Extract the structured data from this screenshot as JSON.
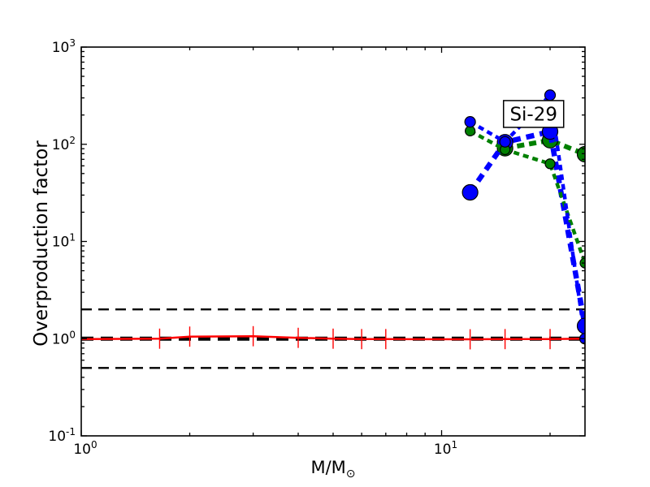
{
  "figure": {
    "background": "#ffffff"
  },
  "chart_data": {
    "type": "line",
    "title": "",
    "xlabel": {
      "main": "M/M",
      "sub": "⊙"
    },
    "ylabel": "Overproduction factor",
    "xscale": "log",
    "yscale": "log",
    "xlim": [
      1,
      25
    ],
    "ylim": [
      0.1,
      1000
    ],
    "grid": false,
    "legend": "none",
    "x_major_ticks": [
      {
        "value": 1,
        "base": "10",
        "exp": "0"
      },
      {
        "value": 10,
        "base": "10",
        "exp": "1"
      }
    ],
    "x_minor_ticks": [
      2,
      3,
      4,
      5,
      6,
      7,
      8,
      9,
      20
    ],
    "y_major_ticks": [
      {
        "value": 1000,
        "base": "10",
        "exp": "3"
      },
      {
        "value": 100,
        "base": "10",
        "exp": "2"
      },
      {
        "value": 10,
        "base": "10",
        "exp": "1"
      },
      {
        "value": 1,
        "base": "10",
        "exp": "0"
      },
      {
        "value": 0.1,
        "base": "10",
        "exp": "-1"
      }
    ],
    "y_minor_decades": [
      0.1,
      1,
      10,
      100
    ],
    "annotation": {
      "label": "Si-29",
      "x": 18,
      "y": 205
    },
    "reference_lines": [
      {
        "y": 2,
        "color": "#000000",
        "style": "dashed",
        "width": 2.3,
        "dash": [
          13,
          8
        ]
      },
      {
        "y": 1,
        "color": "#000000",
        "style": "dashed",
        "width": 5,
        "dash": [
          15,
          9
        ]
      },
      {
        "y": 0.5,
        "color": "#000000",
        "style": "dashed",
        "width": 2.3,
        "dash": [
          13,
          8
        ]
      }
    ],
    "baseline_series": {
      "name": "low-mass-baseline",
      "color": "#ff0000",
      "width": 2.5,
      "x": [
        1,
        1.65,
        2,
        3,
        4,
        5,
        6,
        7,
        12,
        15,
        20,
        25
      ],
      "y": [
        0.99,
        1.0,
        1.05,
        1.06,
        1.02,
        1.0,
        0.99,
        0.99,
        0.985,
        0.99,
        0.99,
        1.0
      ],
      "error_tick_x": [
        1.65,
        2,
        3,
        4,
        5,
        6,
        7,
        12,
        15,
        20,
        25
      ],
      "error_factor": 1.27
    },
    "series": [
      {
        "name": "green-thick",
        "color": "#008000",
        "width": 6,
        "dash": [
          9,
          6
        ],
        "marker": "circle",
        "marker_size": 19,
        "x": [
          15,
          20,
          25
        ],
        "y": [
          91,
          110,
          79
        ]
      },
      {
        "name": "blue-thick",
        "color": "#0000ff",
        "width": 6.5,
        "dash": [
          10,
          7
        ],
        "marker": "circle",
        "marker_size": 19,
        "x": [
          12,
          15,
          20,
          25
        ],
        "y": [
          32,
          105,
          135,
          1.35
        ]
      },
      {
        "name": "green-thin",
        "color": "#008000",
        "width": 4.5,
        "dash": [
          7,
          5
        ],
        "marker": "circle",
        "marker_size": 12,
        "x": [
          12,
          15,
          20,
          25
        ],
        "y": [
          137,
          88,
          63,
          6
        ]
      },
      {
        "name": "blue-thin",
        "color": "#0000ff",
        "width": 4.5,
        "dash": [
          7,
          5
        ],
        "marker": "circle",
        "marker_size": 13,
        "x": [
          12,
          15,
          20,
          25
        ],
        "y": [
          170,
          106,
          320,
          1.0
        ]
      }
    ],
    "marker_edge_color": "#000000"
  }
}
